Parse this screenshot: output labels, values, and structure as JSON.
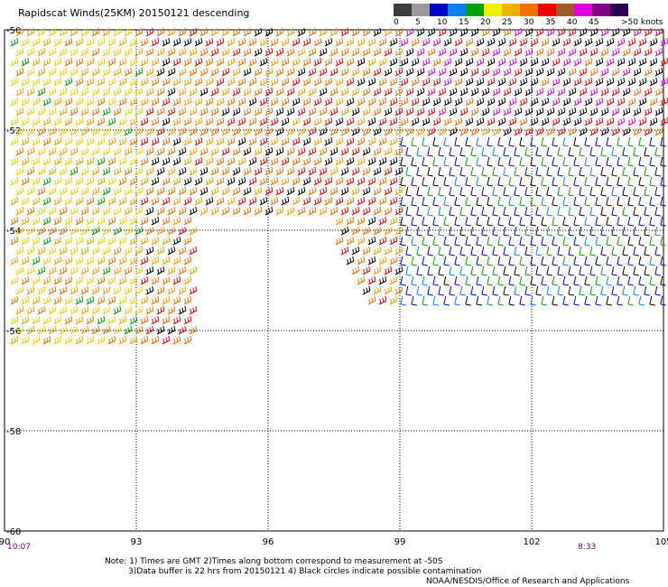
{
  "title": "Rapidscat Winds(25KM) 20150121 descending",
  "scale": {
    "labels": [
      "0",
      "5",
      "10",
      "15",
      "20",
      "25",
      "30",
      "35",
      "40",
      "45",
      ">50 knots"
    ],
    "colors": [
      "#3c3c3c",
      "#9a9a9a",
      "#0000c8",
      "#0a7ff0",
      "#00a000",
      "#f0f000",
      "#f0b000",
      "#f07000",
      "#f00000",
      "#a05a28",
      "#e000e0",
      "#800080",
      "#2a0050"
    ]
  },
  "chart_data": {
    "type": "map",
    "x_ticks": [
      "90",
      "93",
      "96",
      "99",
      "102",
      "105"
    ],
    "y_ticks": [
      "-50",
      "-52",
      "-54",
      "-56",
      "-58",
      "-60"
    ],
    "grid": true
  },
  "time_labels": {
    "left": "10:07",
    "right": "8:33"
  },
  "notes": {
    "line1": "Note: 1) Times are GMT 2)Times along bottom correspond to measurement at -50S",
    "line2": "3)Data buffer is 22 hrs from 20150121 4) Black circles indicate possible contamination",
    "line3": "NOAA/NESDIS/Office of Research and Applications"
  }
}
